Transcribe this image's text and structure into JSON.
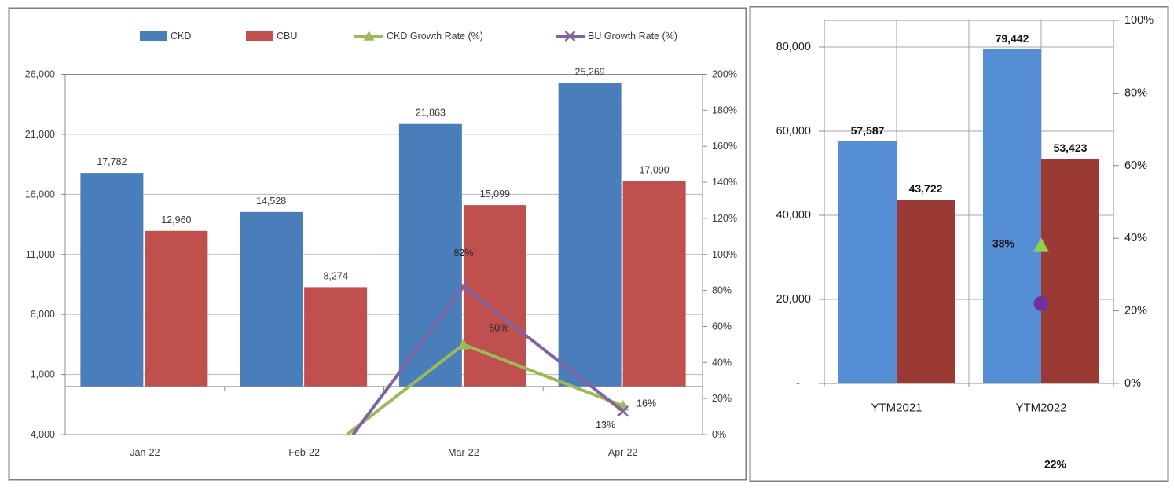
{
  "chart_data": [
    {
      "id": "monthly-combo",
      "type": "bar",
      "subtype": "combo-bar-line-dual-axis",
      "title": "",
      "categories": [
        "Jan-22",
        "Feb-22",
        "Mar-22",
        "Apr-22"
      ],
      "series": [
        {
          "name": "CKD",
          "kind": "bar",
          "axis": "left",
          "color": "#4A7EBB",
          "values": [
            17782,
            14528,
            21863,
            25269
          ],
          "labels": [
            "17,782",
            "14,528",
            "21,863",
            "25,269"
          ]
        },
        {
          "name": "CBU",
          "kind": "bar",
          "axis": "left",
          "color": "#C0504D",
          "values": [
            12960,
            8274,
            15099,
            17090
          ],
          "labels": [
            "12,960",
            "8,274",
            "15,099",
            "17,090"
          ]
        },
        {
          "name": "CKD Growth Rate (%)",
          "kind": "line",
          "marker": "triangle",
          "axis": "right",
          "color": "#9BBB59",
          "values": [
            null,
            -18.3,
            50,
            16
          ],
          "labels": [
            null,
            null,
            "50%",
            "16%"
          ]
        },
        {
          "name": "BU Growth Rate (%)",
          "kind": "line",
          "marker": "x",
          "axis": "right",
          "color": "#8064A2",
          "values": [
            null,
            -36.2,
            82,
            13
          ],
          "labels": [
            null,
            null,
            "82%",
            "13%"
          ]
        }
      ],
      "left_axis": {
        "min": -4000,
        "max": 26000,
        "step": 5000,
        "tick_labels": [
          "26,000",
          "21,000",
          "16,000",
          "11,000",
          "6,000",
          "1,000",
          "-4,000"
        ]
      },
      "right_axis": {
        "min": 0,
        "max": 200,
        "step": 20,
        "tick_labels": [
          "200%",
          "180%",
          "160%",
          "140%",
          "120%",
          "100%",
          "80%",
          "60%",
          "40%",
          "20%",
          "0%"
        ]
      },
      "legend": {
        "position": "top",
        "entries": [
          "CKD",
          "CBU",
          "CKD Growth Rate (%)",
          "BU Growth Rate (%)"
        ]
      },
      "grid": true
    },
    {
      "id": "ytd-summary",
      "type": "bar",
      "subtype": "bar-with-point-markers-dual-axis",
      "title": "",
      "categories": [
        "YTM2021",
        "YTM2022"
      ],
      "series": [
        {
          "kind": "bar",
          "axis": "left",
          "color": "#558ED5",
          "values": [
            57587,
            79442
          ],
          "labels": [
            "57,587",
            "79,442"
          ]
        },
        {
          "kind": "bar",
          "axis": "left",
          "color": "#9B3A35",
          "values": [
            43722,
            53423
          ],
          "labels": [
            "43,722",
            "53,423"
          ]
        },
        {
          "kind": "point",
          "marker": "triangle",
          "axis": "right",
          "color": "#92D050",
          "values": [
            null,
            38
          ],
          "labels": [
            null,
            "38%"
          ]
        },
        {
          "kind": "point",
          "marker": "circle",
          "axis": "right",
          "color": "#7030A0",
          "values": [
            null,
            22
          ],
          "labels": [
            null,
            "22%"
          ]
        }
      ],
      "left_axis": {
        "min": 0,
        "max": 80000,
        "step": 20000,
        "tick_labels": [
          "80,000",
          "60,000",
          "40,000",
          "20,000",
          "-"
        ]
      },
      "right_axis": {
        "min": 0,
        "max": 100,
        "step": 20,
        "tick_labels": [
          "100%",
          "80%",
          "60%",
          "40%",
          "20%",
          "0%"
        ]
      },
      "legend": {
        "position": "none",
        "entries": []
      },
      "grid": true
    }
  ],
  "colors": {
    "panel_border": "#7F7F7F",
    "axis_line": "#8C8C8C",
    "gridline_left_chart": "#B8B8B8",
    "gridline_right_chart": "#A6A6A6",
    "background": "#FFFFFF"
  }
}
